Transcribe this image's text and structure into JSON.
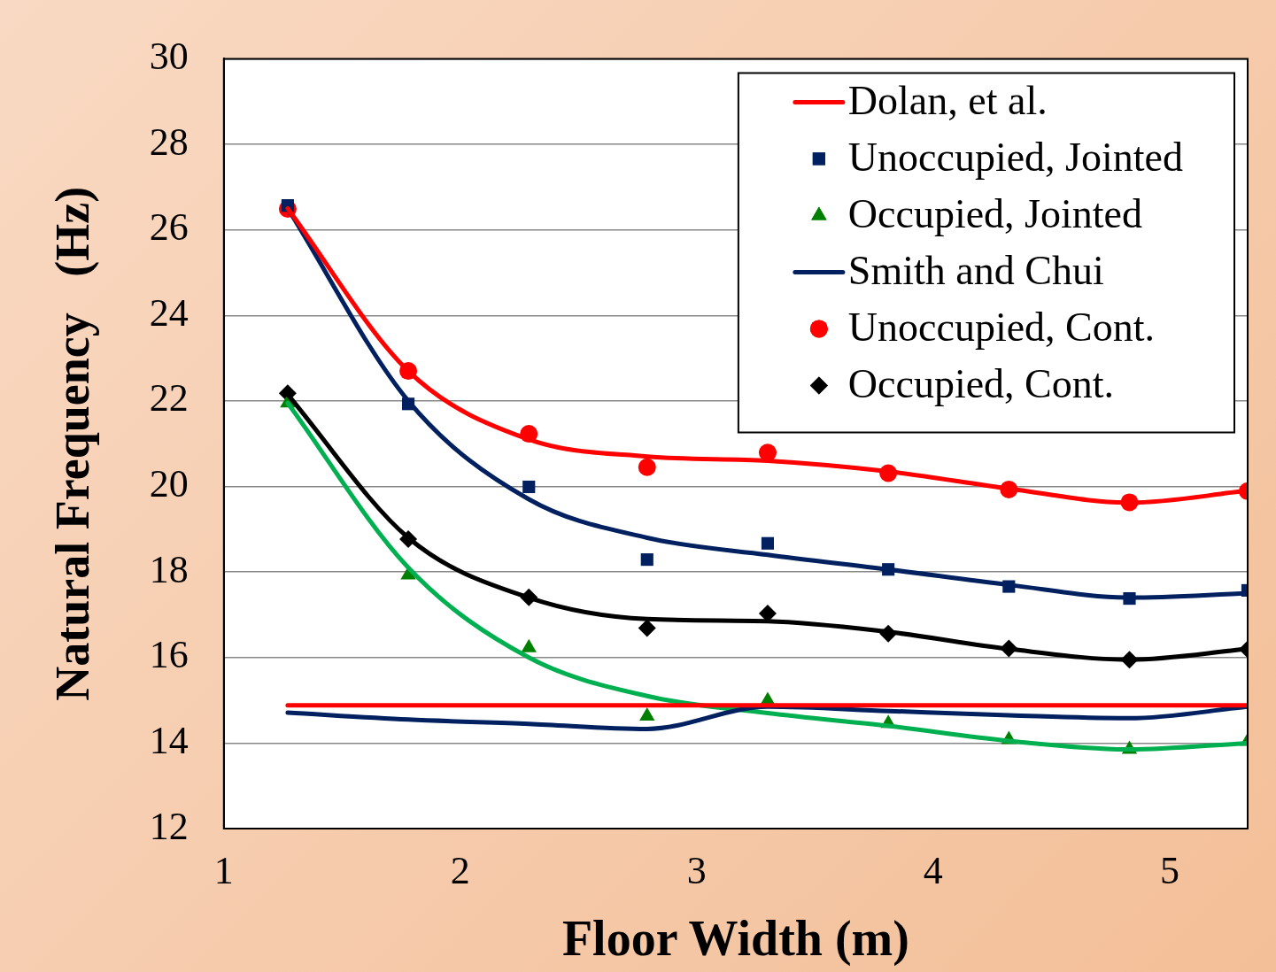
{
  "chart_data": {
    "type": "line",
    "xlabel": "Floor Width (m)",
    "ylabel": "Natural Frequency   (Hz)",
    "x": [
      1.27,
      1.78,
      2.29,
      2.79,
      3.3,
      3.81,
      4.32,
      4.83,
      5.33
    ],
    "xlim": [
      1,
      5.33
    ],
    "xticks": [
      1,
      2,
      3,
      4,
      5
    ],
    "ylim": [
      12,
      30
    ],
    "yticks": [
      12,
      14,
      16,
      18,
      20,
      22,
      24,
      26,
      28,
      30
    ],
    "grid": "y",
    "legend": "top right",
    "series": [
      {
        "name": "Dolan, et al.",
        "type": "line",
        "color": "#ff0000",
        "marker": "none",
        "values": [
          14.88,
          14.88,
          14.88,
          14.88,
          14.88,
          14.88,
          14.88,
          14.88,
          14.88
        ]
      },
      {
        "name": "Unoccupied, Jointed",
        "type": "scatter",
        "color": "#002060",
        "marker": "square",
        "values": [
          26.57,
          21.93,
          19.99,
          18.29,
          18.67,
          18.06,
          17.66,
          17.38,
          17.57
        ]
      },
      {
        "name": "Occupied, Jointed",
        "type": "scatter",
        "color": "#008000",
        "marker": "triangle",
        "values": [
          21.95,
          17.93,
          16.23,
          14.63,
          14.99,
          14.46,
          14.08,
          13.85,
          14.04
        ]
      },
      {
        "name": "Smith and Chui",
        "type": "line",
        "color": "#002060",
        "marker": "none",
        "values": [
          14.71,
          14.55,
          14.45,
          14.33,
          14.85,
          14.75,
          14.65,
          14.58,
          14.85
        ]
      },
      {
        "name": "Unoccupied, Cont.",
        "type": "scatter",
        "color": "#ff0000",
        "marker": "circle",
        "values": [
          26.49,
          22.7,
          21.23,
          20.45,
          20.79,
          20.31,
          19.93,
          19.63,
          19.89
        ]
      },
      {
        "name": "Occupied, Cont.",
        "type": "scatter",
        "color": "#000000",
        "marker": "diamond",
        "values": [
          22.18,
          18.77,
          17.41,
          16.69,
          17.03,
          16.56,
          16.21,
          15.95,
          16.19
        ]
      },
      {
        "type": "line",
        "color": "#ff0000",
        "marker": "none",
        "values": [
          26.5,
          22.7,
          21.1,
          20.7,
          20.6,
          20.35,
          19.95,
          19.62,
          19.9
        ]
      },
      {
        "type": "line",
        "color": "#002060",
        "marker": "none",
        "values": [
          26.5,
          22.0,
          19.7,
          18.8,
          18.4,
          18.06,
          17.7,
          17.4,
          17.5
        ]
      },
      {
        "type": "line",
        "color": "#000000",
        "marker": "none",
        "values": [
          22.15,
          18.8,
          17.4,
          16.9,
          16.85,
          16.6,
          16.2,
          15.95,
          16.2
        ]
      },
      {
        "type": "line",
        "color": "#00b050",
        "marker": "none",
        "values": [
          21.95,
          18.1,
          16.0,
          15.1,
          14.7,
          14.4,
          14.05,
          13.85,
          14.0
        ]
      }
    ]
  }
}
